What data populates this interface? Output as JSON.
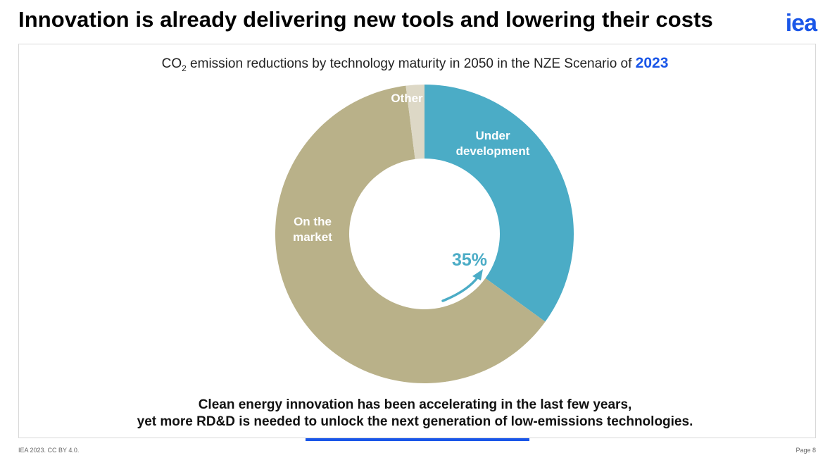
{
  "header": {
    "title": "Innovation is already delivering new tools and lowering their costs",
    "logo_text": "iea"
  },
  "chart_title": {
    "prefix": "CO",
    "subscript": "2",
    "text": " emission reductions by technology maturity in 2050 in the NZE Scenario of ",
    "year": "2023"
  },
  "chart_data": {
    "type": "pie",
    "style": "donut",
    "title": "CO2 emission reductions by technology maturity in 2050 in the NZE Scenario of 2023",
    "slices": [
      {
        "label": "Under development",
        "label_lines": [
          "Under",
          "development"
        ],
        "value": 35,
        "color": "#4bacc6"
      },
      {
        "label": "On the market",
        "label_lines": [
          "On the",
          "market"
        ],
        "value": 63,
        "color": "#b9b189"
      },
      {
        "label": "Other",
        "label_lines": [
          "Other"
        ],
        "value": 2,
        "color": "#ddd8c6"
      }
    ],
    "annotation": {
      "text": "35%",
      "color": "#4bacc6"
    }
  },
  "takeaway": {
    "line1": "Clean energy innovation has been accelerating in the last few years,",
    "line2": "yet more RD&D is needed to unlock the next generation of low-emissions technologies."
  },
  "colors": {
    "accent": "#1a56e8"
  },
  "footer": {
    "license": "IEA 2023. CC BY 4.0.",
    "page": "Page 8"
  }
}
